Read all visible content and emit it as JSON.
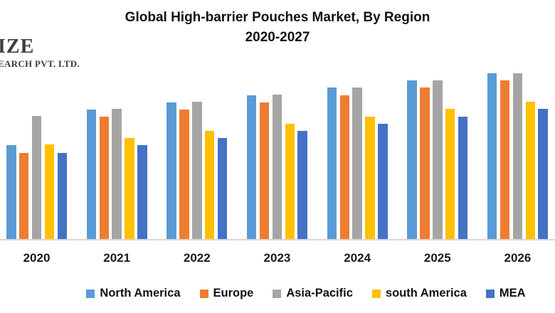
{
  "logo": {
    "line1": "IZE",
    "line2": "EARCH PVT. LTD."
  },
  "title": {
    "line1": "Global High-barrier Pouches Market, By Region",
    "line2": "2020-2027"
  },
  "chart_data": {
    "type": "bar",
    "title": "Global High-barrier Pouches Market, By Region 2020-2027",
    "xlabel": "",
    "ylabel": "",
    "categories": [
      "2020",
      "2021",
      "2022",
      "2023",
      "2024",
      "2025",
      "2026"
    ],
    "series": [
      {
        "name": "North America",
        "color": "#5B9BD5",
        "values": [
          132,
          182,
          192,
          202,
          213,
          223,
          233
        ]
      },
      {
        "name": "Europe",
        "color": "#ED7D31",
        "values": [
          121,
          172,
          182,
          192,
          202,
          213,
          223
        ]
      },
      {
        "name": "Asia-Pacific",
        "color": "#A5A5A5",
        "values": [
          173,
          183,
          193,
          203,
          213,
          223,
          233
        ]
      },
      {
        "name": "south America",
        "color": "#FFC000",
        "values": [
          133,
          142,
          152,
          162,
          172,
          183,
          193
        ]
      },
      {
        "name": "MEA",
        "color": "#4472C4",
        "values": [
          121,
          132,
          142,
          152,
          162,
          172,
          183
        ]
      }
    ],
    "units": "relative height (no value axis shown in chart)",
    "ylim": [
      0,
      250
    ],
    "grid": false,
    "value_axis_visible": false,
    "legend_position": "bottom",
    "axis_line_color": "#D9D9D9",
    "background_color": "#FFFFFF"
  }
}
